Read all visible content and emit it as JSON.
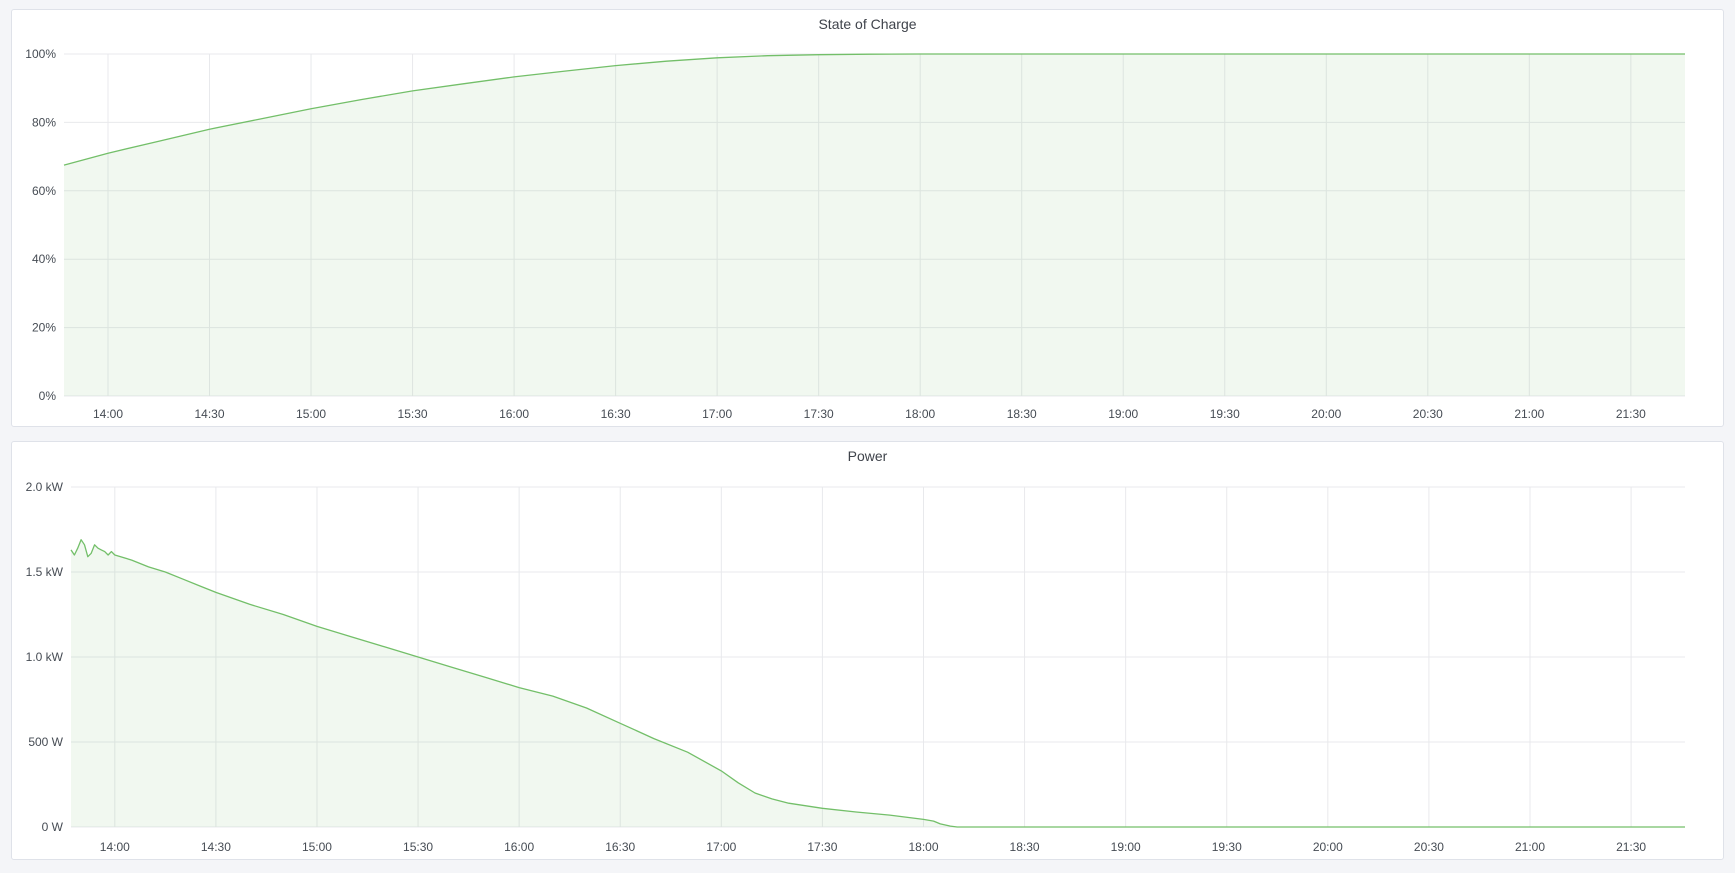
{
  "colors": {
    "line": "#73bf69",
    "fill": "rgba(115,191,105,0.1)",
    "grid": "#e8e9ec",
    "background": "#f4f5f8"
  },
  "chart_data": [
    {
      "type": "area",
      "title": "State of Charge",
      "xlabel": "",
      "ylabel": "",
      "xlim": [
        "13:47",
        "21:46"
      ],
      "ylim": [
        0,
        100
      ],
      "yticks": [
        0,
        20,
        40,
        60,
        80,
        100
      ],
      "ytick_labels": [
        "0%",
        "20%",
        "40%",
        "60%",
        "80%",
        "100%"
      ],
      "xtick_labels": [
        "14:00",
        "14:30",
        "15:00",
        "15:30",
        "16:00",
        "16:30",
        "17:00",
        "17:30",
        "18:00",
        "18:30",
        "19:00",
        "19:30",
        "20:00",
        "20:30",
        "21:00",
        "21:30"
      ],
      "grid": true,
      "series": [
        {
          "x": [
            "13:47",
            "14:00",
            "14:15",
            "14:30",
            "14:45",
            "15:00",
            "15:15",
            "15:30",
            "15:45",
            "16:00",
            "16:15",
            "16:30",
            "16:45",
            "17:00",
            "17:15",
            "17:30",
            "17:45",
            "18:00",
            "18:30",
            "19:00",
            "20:00",
            "21:00",
            "21:46"
          ],
          "y": [
            67.5,
            71,
            74.5,
            78,
            81,
            84,
            86.7,
            89.2,
            91.3,
            93.3,
            95,
            96.6,
            97.9,
            98.9,
            99.5,
            99.8,
            99.95,
            100,
            100,
            100,
            100,
            100,
            100
          ]
        }
      ]
    },
    {
      "type": "area",
      "title": "Power",
      "xlabel": "",
      "ylabel": "",
      "xlim": [
        "13:47",
        "21:46"
      ],
      "ylim": [
        0,
        2000
      ],
      "yticks": [
        0,
        500,
        1000,
        1500,
        2000
      ],
      "ytick_labels": [
        "0 W",
        "500 W",
        "1.0 kW",
        "1.5 kW",
        "2.0 kW"
      ],
      "xtick_labels": [
        "14:00",
        "14:30",
        "15:00",
        "15:30",
        "16:00",
        "16:30",
        "17:00",
        "17:30",
        "18:00",
        "18:30",
        "19:00",
        "19:30",
        "20:00",
        "20:30",
        "21:00",
        "21:30"
      ],
      "grid": true,
      "series": [
        {
          "x": [
            "13:47",
            "13:48",
            "13:49",
            "13:50",
            "13:51",
            "13:52",
            "13:53",
            "13:54",
            "13:55",
            "13:56",
            "13:57",
            "13:58",
            "13:59",
            "14:00",
            "14:05",
            "14:10",
            "14:15",
            "14:20",
            "14:25",
            "14:30",
            "14:40",
            "14:50",
            "15:00",
            "15:10",
            "15:20",
            "15:30",
            "15:40",
            "15:50",
            "16:00",
            "16:10",
            "16:20",
            "16:30",
            "16:40",
            "16:50",
            "17:00",
            "17:05",
            "17:10",
            "17:15",
            "17:20",
            "17:30",
            "17:40",
            "17:50",
            "18:00",
            "18:03",
            "18:05",
            "18:08",
            "18:10",
            "18:30",
            "19:00",
            "20:00",
            "21:00",
            "21:46"
          ],
          "y": [
            1630,
            1600,
            1640,
            1690,
            1660,
            1590,
            1610,
            1660,
            1640,
            1630,
            1620,
            1600,
            1620,
            1600,
            1570,
            1530,
            1500,
            1460,
            1420,
            1380,
            1310,
            1250,
            1180,
            1120,
            1060,
            1000,
            940,
            880,
            820,
            770,
            700,
            610,
            520,
            440,
            330,
            260,
            200,
            165,
            140,
            110,
            88,
            70,
            45,
            35,
            18,
            5,
            0,
            0,
            0,
            0,
            0,
            0
          ]
        }
      ]
    }
  ]
}
